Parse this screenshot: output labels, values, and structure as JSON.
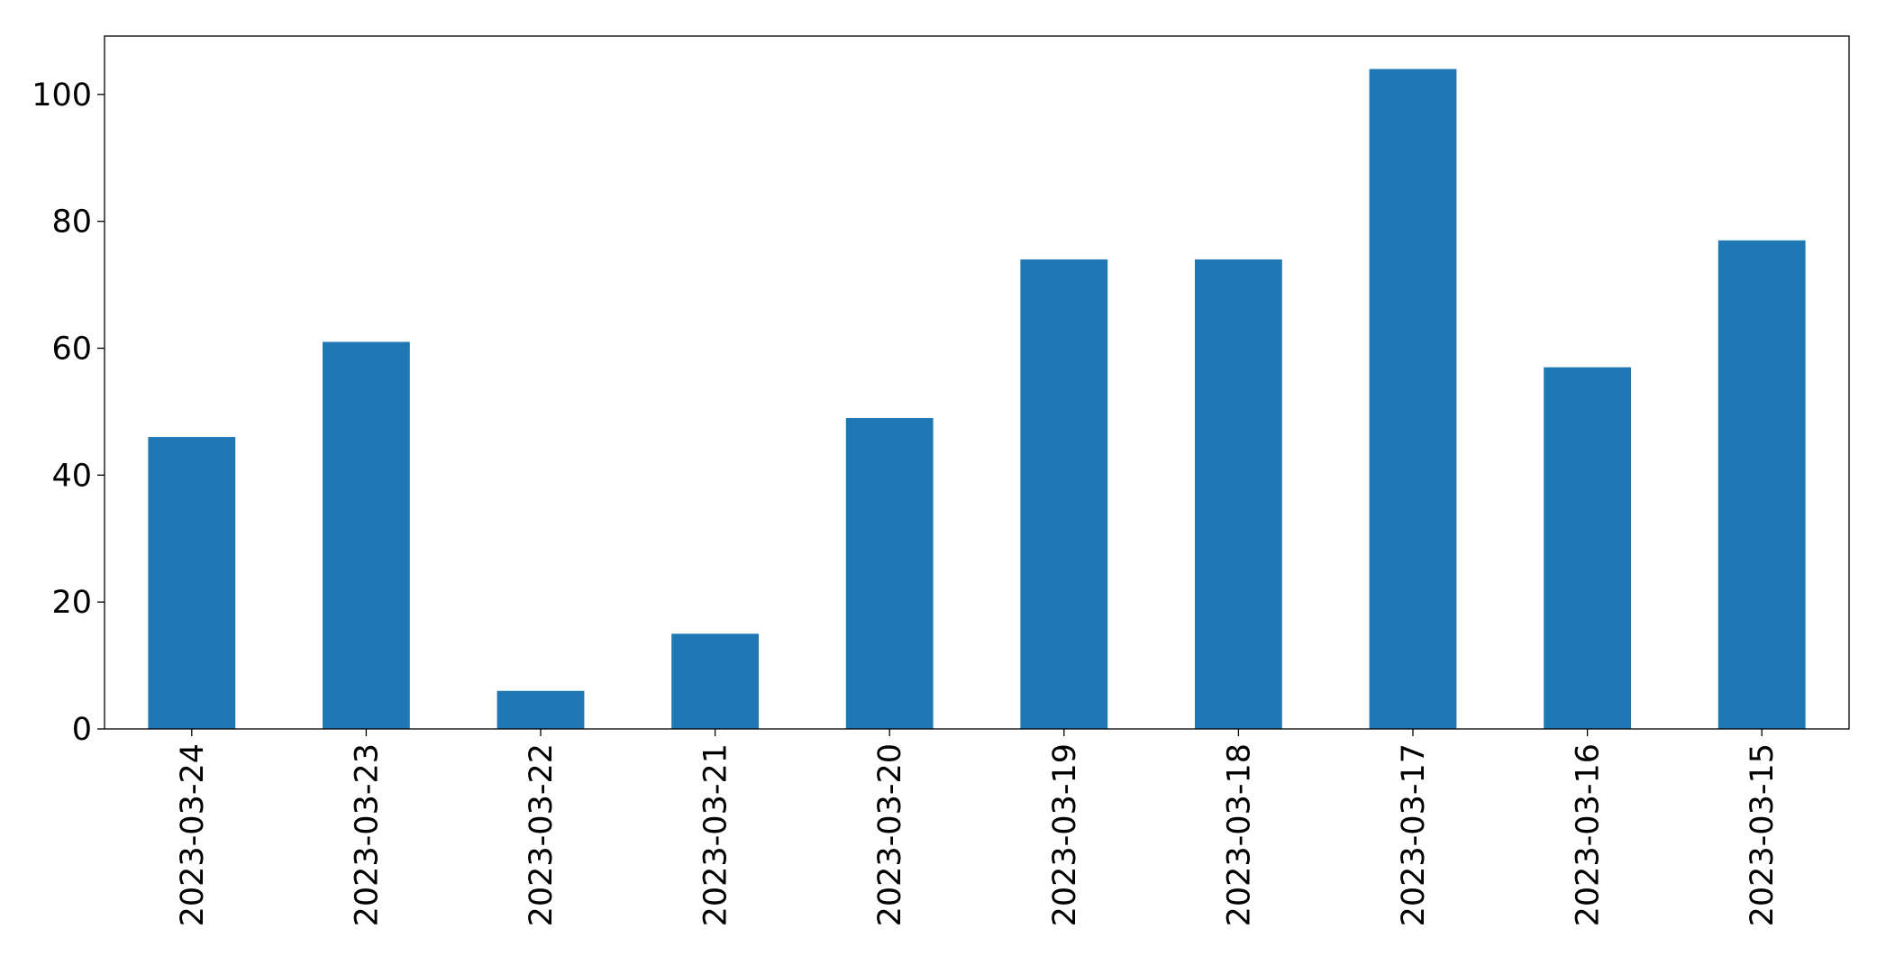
{
  "chart_data": {
    "type": "bar",
    "categories": [
      "2023-03-24",
      "2023-03-23",
      "2023-03-22",
      "2023-03-21",
      "2023-03-20",
      "2023-03-19",
      "2023-03-18",
      "2023-03-17",
      "2023-03-16",
      "2023-03-15"
    ],
    "values": [
      46,
      61,
      6,
      15,
      49,
      74,
      74,
      104,
      57,
      77
    ],
    "color": "#1f77b4",
    "ylim": [
      0,
      109.2
    ],
    "yticks": [
      0,
      20,
      40,
      60,
      80,
      100
    ],
    "grid": false
  }
}
